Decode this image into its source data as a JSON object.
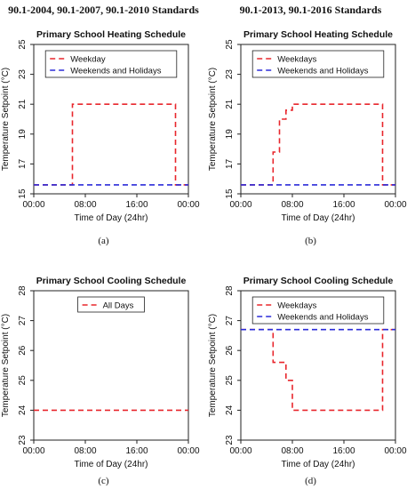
{
  "column_titles": [
    "90.1-2004, 90.1-2007, 90.1-2010 Standards",
    "90.1-2013, 90.1-2016 Standards"
  ],
  "captions": [
    "(a)",
    "(b)",
    "(c)",
    "(d)"
  ],
  "colors": {
    "red": "#e8262c",
    "blue": "#2b2bd9",
    "text": "#111111"
  },
  "chart_data": [
    {
      "type": "line",
      "title": "Primary School Heating Schedule",
      "xlabel": "Time of Day (24hr)",
      "ylabel": "Temperature Setpoint (°C)",
      "xlim": [
        0,
        24
      ],
      "ylim": [
        15,
        25
      ],
      "xticks": [
        0,
        8,
        16,
        24
      ],
      "xtick_labels": [
        "00:00",
        "08:00",
        "16:00",
        "00:00"
      ],
      "yticks": [
        15,
        17,
        19,
        21,
        23,
        25
      ],
      "ytick_labels": [
        "15",
        "17",
        "19",
        "21",
        "23",
        "25"
      ],
      "legend_position": "top",
      "series": [
        {
          "name": "Weekday",
          "color": "red",
          "x": [
            0,
            6,
            6,
            22,
            22,
            24
          ],
          "y": [
            15.6,
            15.6,
            21,
            21,
            15.6,
            15.6
          ]
        },
        {
          "name": "Weekends and Holidays",
          "color": "blue",
          "x": [
            0,
            24
          ],
          "y": [
            15.6,
            15.6
          ]
        }
      ]
    },
    {
      "type": "line",
      "title": "Primary School Heating Schedule",
      "xlabel": "Time of Day (24hr)",
      "ylabel": "Temperature Setpoint (°C)",
      "xlim": [
        0,
        24
      ],
      "ylim": [
        15,
        25
      ],
      "xticks": [
        0,
        8,
        16,
        24
      ],
      "xtick_labels": [
        "00:00",
        "08:00",
        "16:00",
        "00:00"
      ],
      "yticks": [
        15,
        17,
        19,
        21,
        23,
        25
      ],
      "ytick_labels": [
        "15",
        "17",
        "19",
        "21",
        "23",
        "25"
      ],
      "legend_position": "top",
      "series": [
        {
          "name": "Weekdays",
          "color": "red",
          "x": [
            0,
            5,
            5,
            6,
            6,
            7,
            7,
            8,
            8,
            22,
            22,
            24
          ],
          "y": [
            15.6,
            15.6,
            17.8,
            17.8,
            20,
            20,
            20.6,
            20.6,
            21,
            21,
            15.6,
            15.6
          ]
        },
        {
          "name": "Weekends and Holidays",
          "color": "blue",
          "x": [
            0,
            24
          ],
          "y": [
            15.6,
            15.6
          ]
        }
      ]
    },
    {
      "type": "line",
      "title": "Primary School Cooling Schedule",
      "xlabel": "Time of Day (24hr)",
      "ylabel": "Temperature Setpoint (°C)",
      "xlim": [
        0,
        24
      ],
      "ylim": [
        23,
        28
      ],
      "xticks": [
        0,
        8,
        16,
        24
      ],
      "xtick_labels": [
        "00:00",
        "08:00",
        "16:00",
        "00:00"
      ],
      "yticks": [
        23,
        24,
        25,
        26,
        27,
        28
      ],
      "ytick_labels": [
        "23",
        "24",
        "25",
        "26",
        "27",
        "28"
      ],
      "legend_position": "top",
      "series": [
        {
          "name": "All Days",
          "color": "red",
          "x": [
            0,
            24
          ],
          "y": [
            24,
            24
          ]
        }
      ]
    },
    {
      "type": "line",
      "title": "Primary School Cooling Schedule",
      "xlabel": "Time of Day (24hr)",
      "ylabel": "Temperature Setpoint (°C)",
      "xlim": [
        0,
        24
      ],
      "ylim": [
        23,
        28
      ],
      "xticks": [
        0,
        8,
        16,
        24
      ],
      "xtick_labels": [
        "00:00",
        "08:00",
        "16:00",
        "00:00"
      ],
      "yticks": [
        23,
        24,
        25,
        26,
        27,
        28
      ],
      "ytick_labels": [
        "23",
        "24",
        "25",
        "26",
        "27",
        "28"
      ],
      "legend_position": "top",
      "series": [
        {
          "name": "Weekdays",
          "color": "red",
          "x": [
            0,
            5,
            5,
            6,
            6,
            7,
            7,
            8,
            8,
            22,
            22,
            24
          ],
          "y": [
            26.7,
            26.7,
            25.6,
            25.6,
            25.6,
            25.6,
            25,
            25,
            24,
            24,
            26.7,
            26.7
          ]
        },
        {
          "name": "Weekends and Holidays",
          "color": "blue",
          "x": [
            0,
            24
          ],
          "y": [
            26.7,
            26.7
          ]
        }
      ]
    }
  ]
}
